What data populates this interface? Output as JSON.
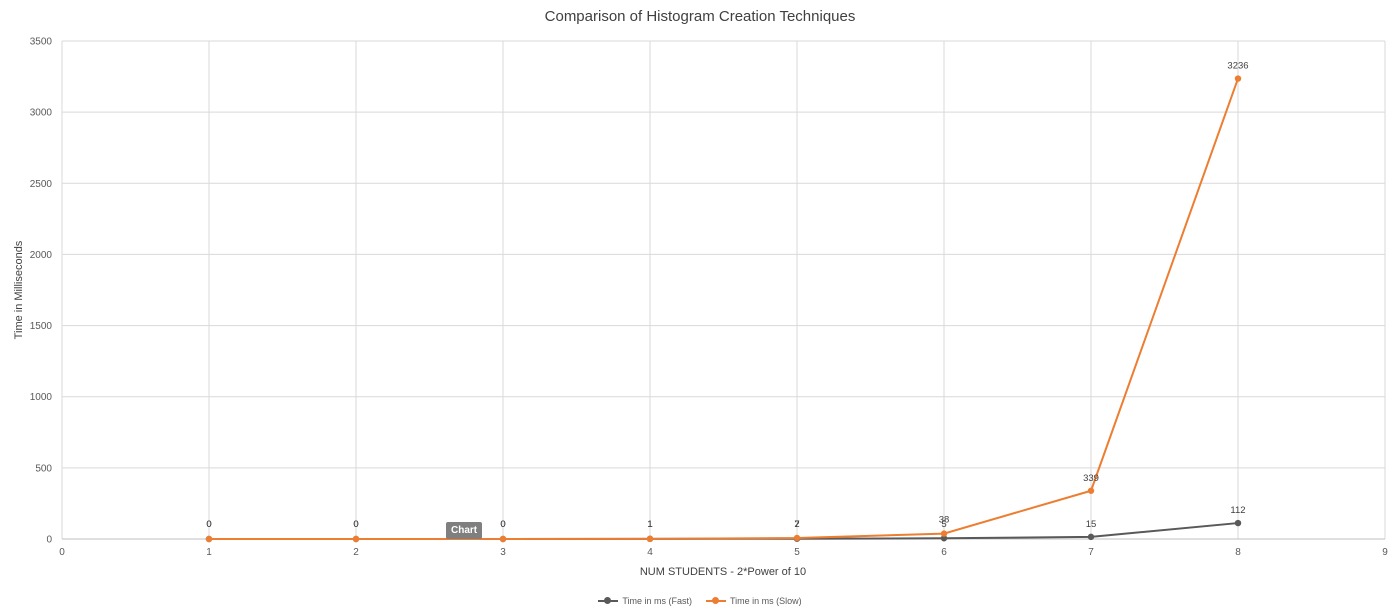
{
  "chart_data": {
    "type": "line",
    "title": "Comparison of Histogram Creation Techniques",
    "xlabel": "NUM STUDENTS  - 2*Power of 10",
    "ylabel": "Time in Milliseconds",
    "xlim": [
      0,
      9
    ],
    "ylim": [
      0,
      3500
    ],
    "x_ticks": [
      0,
      1,
      2,
      3,
      4,
      5,
      6,
      7,
      8,
      9
    ],
    "y_ticks": [
      0,
      500,
      1000,
      1500,
      2000,
      2500,
      3000,
      3500
    ],
    "x": [
      1,
      2,
      3,
      4,
      5,
      6,
      7,
      8
    ],
    "grid": true,
    "legend_position": "bottom",
    "series": [
      {
        "name": "Time in ms (Fast)",
        "color": "#595959",
        "values": [
          0,
          0,
          0,
          1,
          2,
          5,
          15,
          112
        ]
      },
      {
        "name": "Time in ms (Slow)",
        "color": "#ed7d31",
        "values": [
          0,
          0,
          0,
          1,
          7,
          38,
          339,
          3236
        ]
      }
    ]
  },
  "tooltip": {
    "label": "Chart"
  }
}
